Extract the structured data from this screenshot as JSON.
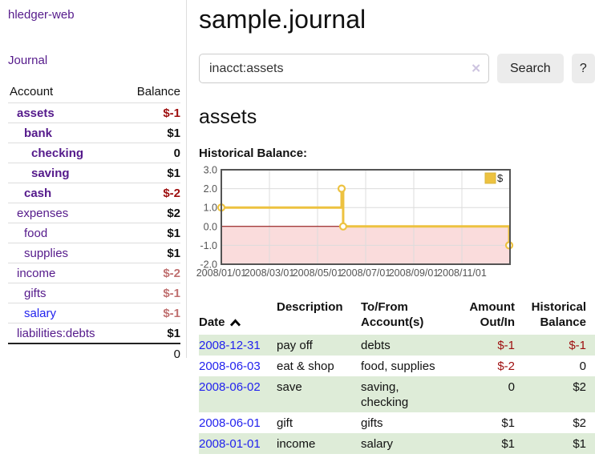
{
  "app": {
    "title": "hledger-web"
  },
  "sidebar": {
    "journal_link": "Journal",
    "account_header": "Account",
    "balance_header": "Balance",
    "accounts": [
      {
        "name": "assets",
        "indent": 1,
        "bold": true,
        "balance": "$-1",
        "tone": "neg"
      },
      {
        "name": "bank",
        "indent": 2,
        "bold": true,
        "balance": "$1",
        "tone": "pos"
      },
      {
        "name": "checking",
        "indent": 3,
        "bold": true,
        "balance": "0",
        "tone": "pos"
      },
      {
        "name": "saving",
        "indent": 3,
        "bold": true,
        "balance": "$1",
        "tone": "pos"
      },
      {
        "name": "cash",
        "indent": 2,
        "bold": true,
        "balance": "$-2",
        "tone": "neg"
      },
      {
        "name": "expenses",
        "indent": 1,
        "bold": false,
        "balance": "$2",
        "tone": "pos"
      },
      {
        "name": "food",
        "indent": 2,
        "bold": false,
        "balance": "$1",
        "tone": "pos"
      },
      {
        "name": "supplies",
        "indent": 2,
        "bold": false,
        "balance": "$1",
        "tone": "pos"
      },
      {
        "name": "income",
        "indent": 1,
        "bold": false,
        "balance": "$-2",
        "tone": "negLight"
      },
      {
        "name": "gifts",
        "indent": 2,
        "bold": false,
        "balance": "$-1",
        "tone": "negLight"
      },
      {
        "name": "salary",
        "indent": 2,
        "bold": false,
        "balance": "$-1",
        "tone": "negLight",
        "link_color": "blue"
      },
      {
        "name": "liabilities:debts",
        "indent": 1,
        "bold": false,
        "balance": "$1",
        "tone": "pos"
      }
    ],
    "total": "0"
  },
  "main": {
    "title": "sample.journal",
    "search": {
      "value": "inacct:assets",
      "button": "Search",
      "help_button": "?"
    },
    "account_heading": "assets",
    "chart_label": "Historical Balance:"
  },
  "icons": {
    "clear": "✕",
    "sort": "chevron-up"
  },
  "register": {
    "headers": [
      "Date",
      "Description",
      "To/From\nAccount(s)",
      "Amount\nOut/In",
      "Historical\nBalance"
    ],
    "rows": [
      {
        "date": "2008-12-31",
        "description": "pay off",
        "to_from": "debts",
        "amount": "$-1",
        "balance": "$-1",
        "shaded": true
      },
      {
        "date": "2008-06-03",
        "description": "eat & shop",
        "to_from": "food, supplies",
        "amount": "$-2",
        "balance": "0",
        "shaded": false
      },
      {
        "date": "2008-06-02",
        "description": "save",
        "to_from": "saving,\nchecking",
        "amount": "0",
        "balance": "$2",
        "shaded": true
      },
      {
        "date": "2008-06-01",
        "description": "gift",
        "to_from": "gifts",
        "amount": "$1",
        "balance": "$2",
        "shaded": false
      },
      {
        "date": "2008-01-01",
        "description": "income",
        "to_from": "salary",
        "amount": "$1",
        "balance": "$1",
        "shaded": true
      }
    ]
  },
  "chart_data": {
    "type": "line",
    "step": true,
    "title": "Historical Balance",
    "legend": [
      "$"
    ],
    "legend_position": "top-right",
    "grid": true,
    "x_ticks": [
      "2008/01/01",
      "2008/03/01",
      "2008/05/01",
      "2008/07/01",
      "2008/09/01",
      "2008/11/01"
    ],
    "y_ticks": [
      3.0,
      2.0,
      1.0,
      0.0,
      -1.0,
      -2.0
    ],
    "ylim": [
      -2,
      3
    ],
    "xlim_months": [
      0,
      12
    ],
    "points": [
      {
        "date": "2008-01-01",
        "value": 1
      },
      {
        "date": "2008-06-01",
        "value": 2
      },
      {
        "date": "2008-06-03",
        "value": 0
      },
      {
        "date": "2008-12-31",
        "value": -1
      }
    ],
    "negative_region_shaded": true
  },
  "colors": {
    "link_purple": "#551a8b",
    "link_blue": "#2222ee",
    "negative_red": "#9e0e0e",
    "negative_light_red": "#c07070",
    "row_green": "#deecd8",
    "chart_line": "#edc240",
    "chart_negative_fill": "#fadcdc",
    "chart_zero_line": "#8b0000",
    "chart_border": "#545454",
    "chart_grid": "#dcdcdc",
    "button_gray": "#ececec"
  }
}
